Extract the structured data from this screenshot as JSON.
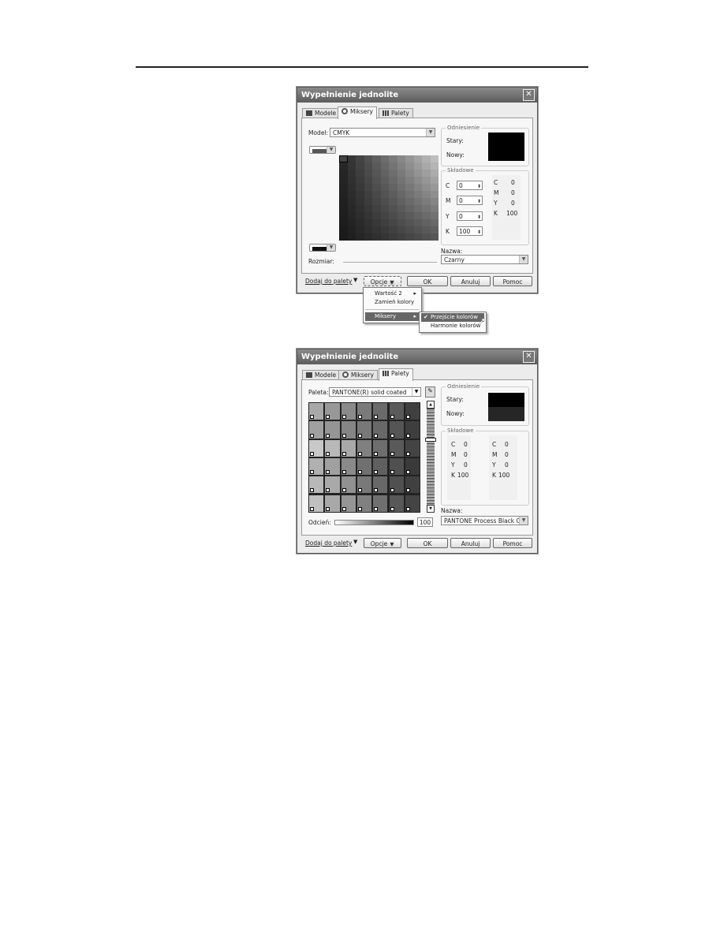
{
  "dialog1": {
    "title": "Wypełnienie jednolite",
    "close_icon": "close-icon",
    "tabs": [
      {
        "label": "Modele",
        "icon": "models-icon"
      },
      {
        "label": "Miksery",
        "icon": "mixer-icon",
        "active": true
      },
      {
        "label": "Palety",
        "icon": "palette-icon"
      }
    ],
    "model_label": "Model:",
    "model_value": "CMYK",
    "rozmiar_label": "Rozmiar:",
    "odniesienie": {
      "label": "Odniesienie",
      "stary": "Stary:",
      "nowy": "Nowy:",
      "old_color": "#000000",
      "new_color": "#000000"
    },
    "skladowe": {
      "label": "Składowe",
      "inputs": [
        {
          "label": "C",
          "value": "0"
        },
        {
          "label": "M",
          "value": "0"
        },
        {
          "label": "Y",
          "value": "0"
        },
        {
          "label": "K",
          "value": "100"
        }
      ],
      "readout": [
        {
          "label": "C",
          "value": "0"
        },
        {
          "label": "M",
          "value": "0"
        },
        {
          "label": "Y",
          "value": "0"
        },
        {
          "label": "K",
          "value": "100"
        }
      ]
    },
    "nazwa_label": "Nazwa:",
    "nazwa_value": "Czarny",
    "buttons": {
      "add": "Dodaj do palety",
      "options": "Opcje",
      "ok": "OK",
      "cancel": "Anuluj",
      "help": "Pomoc"
    },
    "menu": {
      "items": [
        "Wartość 2",
        "Zamień kolory",
        "Miksery"
      ],
      "submenu": [
        "Przejście kolorów",
        "Harmonie kolorów"
      ],
      "checked": "Przejście kolorów"
    }
  },
  "dialog2": {
    "title": "Wypełnienie jednolite",
    "tabs": [
      {
        "label": "Modele",
        "icon": "models-icon"
      },
      {
        "label": "Miksery",
        "icon": "mixer-icon"
      },
      {
        "label": "Palety",
        "icon": "palette-icon",
        "active": true
      }
    ],
    "paleta_label": "Paleta:",
    "paleta_value": "PANTONE(R) solid coated",
    "odcien_label": "Odcień:",
    "odcien_value": "100",
    "odniesienie": {
      "label": "Odniesienie",
      "stary": "Stary:",
      "nowy": "Nowy:",
      "old_color": "#000000",
      "new_color": "#262626"
    },
    "skladowe": {
      "label": "Składowe",
      "col1": [
        {
          "label": "C",
          "value": "0"
        },
        {
          "label": "M",
          "value": "0"
        },
        {
          "label": "Y",
          "value": "0"
        },
        {
          "label": "K",
          "value": "100"
        }
      ],
      "col2": [
        {
          "label": "C",
          "value": "0"
        },
        {
          "label": "M",
          "value": "0"
        },
        {
          "label": "Y",
          "value": "0"
        },
        {
          "label": "K",
          "value": "100"
        }
      ]
    },
    "nazwa_label": "Nazwa:",
    "nazwa_value": "PANTONE Process Black C",
    "buttons": {
      "add": "Dodaj do palety",
      "options": "Opcje",
      "ok": "OK",
      "cancel": "Anuluj",
      "help": "Pomoc"
    },
    "swatches": [
      [
        "#a8a8a8",
        "#989898",
        "#8a8a8a",
        "#7a7a7a",
        "#6a6a6a",
        "#5a5a5a",
        "#404040"
      ],
      [
        "#a0a0a0",
        "#959595",
        "#858585",
        "#787878",
        "#686868",
        "#555555",
        "#3e3e3e"
      ],
      [
        "#c8c8c8",
        "#b8b8b8",
        "#a8a8a8",
        "#808080",
        "#6e6e6e",
        "#5a5a5a",
        "#444444"
      ],
      [
        "#b0b0b0",
        "#a0a0a0",
        "#8a8a8a",
        "#707070",
        "#606060",
        "#505050",
        "#3a3a3a"
      ],
      [
        "#b8b8b8",
        "#a8a8a8",
        "#909090",
        "#787878",
        "#686868",
        "#505050",
        "#404040"
      ],
      [
        "#c0c0c0",
        "#a8a8a8",
        "#959595",
        "#808080",
        "#707070",
        "#585858",
        "#444444"
      ]
    ]
  }
}
